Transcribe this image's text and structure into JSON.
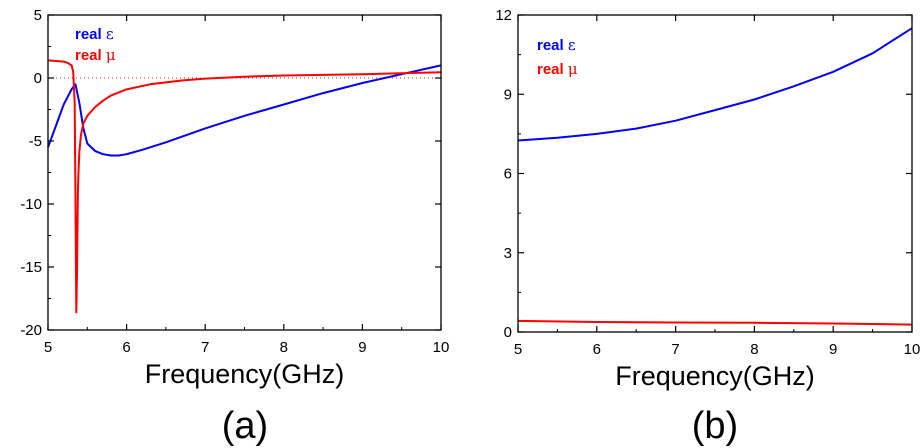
{
  "chart_data": [
    {
      "type": "line",
      "panel_label": "(a)",
      "xlabel": "Frequency(GHz)",
      "ylabel": "",
      "xlim": [
        5,
        10
      ],
      "ylim": [
        -20,
        5
      ],
      "xticks": [
        "5",
        "6",
        "7",
        "8",
        "9",
        "10"
      ],
      "yticks": [
        "5",
        "0",
        "-5",
        "-10",
        "-15",
        "-20"
      ],
      "xtick_values": [
        5,
        6,
        7,
        8,
        9,
        10
      ],
      "ytick_values": [
        5,
        0,
        -5,
        -10,
        -15,
        -20
      ],
      "zero_line": "dotted red",
      "legend_position": "top-left",
      "series": [
        {
          "name": "real ε",
          "legend_prefix": "real ",
          "legend_symbol": "ε",
          "color": "#0000ff",
          "x": [
            5.0,
            5.1,
            5.2,
            5.3,
            5.35,
            5.4,
            5.45,
            5.5,
            5.6,
            5.7,
            5.8,
            5.9,
            6.0,
            6.2,
            6.5,
            7.0,
            7.5,
            8.0,
            8.5,
            9.0,
            9.5,
            10.0
          ],
          "y": [
            -5.5,
            -3.8,
            -2.1,
            -0.9,
            -0.5,
            -2.0,
            -4.0,
            -5.2,
            -5.8,
            -6.05,
            -6.15,
            -6.15,
            -6.05,
            -5.7,
            -5.1,
            -4.0,
            -3.0,
            -2.1,
            -1.2,
            -0.4,
            0.3,
            1.0
          ]
        },
        {
          "name": "real μ",
          "legend_prefix": "real ",
          "legend_symbol": "μ",
          "color": "#ff0000",
          "x": [
            5.0,
            5.1,
            5.2,
            5.25,
            5.3,
            5.32,
            5.34,
            5.35,
            5.36,
            5.37,
            5.38,
            5.39,
            5.4,
            5.42,
            5.45,
            5.5,
            5.6,
            5.7,
            5.8,
            6.0,
            6.3,
            6.7,
            7.0,
            7.5,
            8.0,
            9.0,
            10.0
          ],
          "y": [
            1.4,
            1.35,
            1.3,
            1.2,
            1.0,
            0.5,
            -2.0,
            -10.0,
            -18.6,
            -15.0,
            -9.0,
            -7.0,
            -5.8,
            -4.5,
            -3.6,
            -3.0,
            -2.3,
            -1.8,
            -1.4,
            -0.9,
            -0.5,
            -0.2,
            -0.05,
            0.1,
            0.2,
            0.3,
            0.45
          ]
        }
      ]
    },
    {
      "type": "line",
      "panel_label": "(b)",
      "xlabel": "Frequency(GHz)",
      "ylabel": "",
      "xlim": [
        5,
        10
      ],
      "ylim": [
        0,
        12
      ],
      "xticks": [
        "5",
        "6",
        "7",
        "8",
        "9",
        "10"
      ],
      "yticks": [
        "12",
        "9",
        "6",
        "3",
        "0"
      ],
      "xtick_values": [
        5,
        6,
        7,
        8,
        9,
        10
      ],
      "ytick_values": [
        12,
        9,
        6,
        3,
        0
      ],
      "legend_position": "top-left",
      "series": [
        {
          "name": "real ε",
          "legend_prefix": "real ",
          "legend_symbol": "ε",
          "color": "#0000ff",
          "x": [
            5.0,
            5.5,
            6.0,
            6.5,
            7.0,
            7.5,
            8.0,
            8.5,
            9.0,
            9.5,
            10.0
          ],
          "y": [
            7.25,
            7.35,
            7.5,
            7.7,
            8.0,
            8.4,
            8.8,
            9.3,
            9.85,
            10.55,
            11.5
          ]
        },
        {
          "name": "real μ",
          "legend_prefix": "real ",
          "legend_symbol": "μ",
          "color": "#ff0000",
          "x": [
            5.0,
            6.0,
            7.0,
            8.0,
            9.0,
            10.0
          ],
          "y": [
            0.42,
            0.38,
            0.36,
            0.35,
            0.32,
            0.28
          ]
        }
      ]
    }
  ]
}
